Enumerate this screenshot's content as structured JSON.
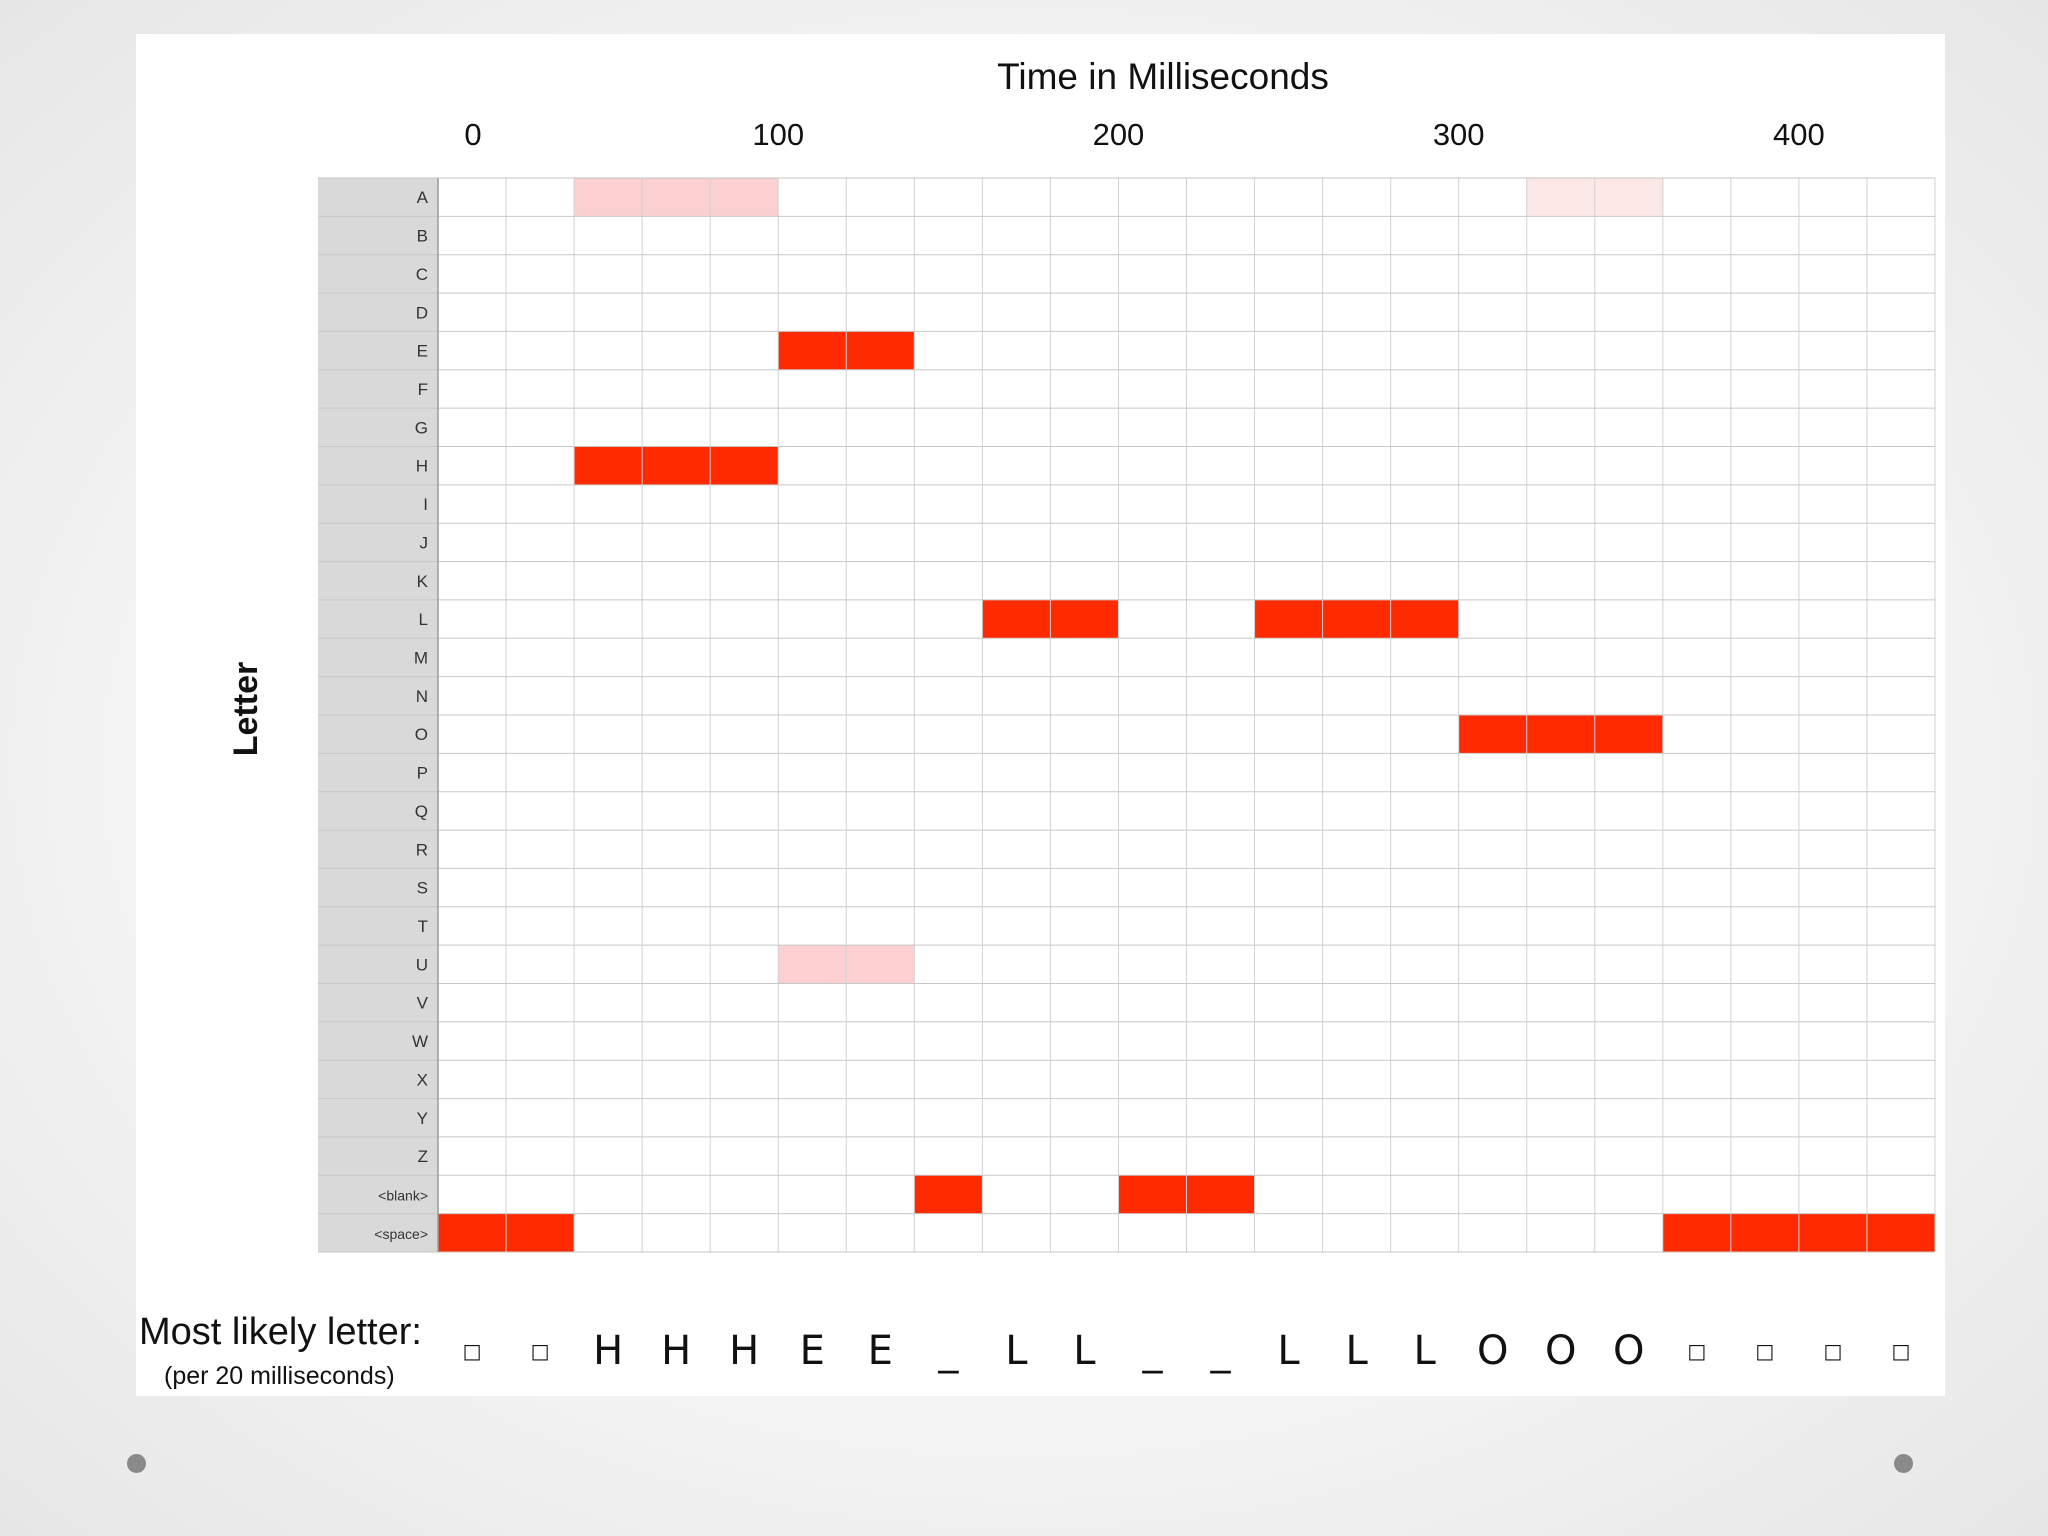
{
  "chart_data": {
    "type": "heatmap",
    "title": "Time in Milliseconds",
    "xlabel": "Time in Milliseconds",
    "ylabel": "Letter",
    "x_ticks": [
      "0",
      "100",
      "200",
      "300",
      "400"
    ],
    "x_tick_values": [
      0,
      100,
      200,
      300,
      400
    ],
    "frame_ms": 20,
    "n_frames": 22,
    "rows": [
      "A",
      "B",
      "C",
      "D",
      "E",
      "F",
      "G",
      "H",
      "I",
      "J",
      "K",
      "L",
      "M",
      "N",
      "O",
      "P",
      "Q",
      "R",
      "S",
      "T",
      "U",
      "V",
      "W",
      "X",
      "Y",
      "Z",
      "<blank>",
      "<space>"
    ],
    "colors": {
      "strong": "#ff2a00",
      "weak": "#fcd0d0",
      "faint": "#fde8e8",
      "grid": "#d2d2d2",
      "row_label_bg": "#d9d9d9"
    },
    "cells": [
      {
        "row": "<space>",
        "frames": [
          0,
          1
        ],
        "level": "strong"
      },
      {
        "row": "H",
        "frames": [
          2,
          3,
          4
        ],
        "level": "strong"
      },
      {
        "row": "A",
        "frames": [
          2,
          3,
          4
        ],
        "level": "weak"
      },
      {
        "row": "E",
        "frames": [
          5,
          6
        ],
        "level": "strong"
      },
      {
        "row": "U",
        "frames": [
          5,
          6
        ],
        "level": "weak"
      },
      {
        "row": "<blank>",
        "frames": [
          7
        ],
        "level": "strong"
      },
      {
        "row": "L",
        "frames": [
          8,
          9
        ],
        "level": "strong"
      },
      {
        "row": "<blank>",
        "frames": [
          10,
          11
        ],
        "level": "strong"
      },
      {
        "row": "L",
        "frames": [
          12,
          13,
          14
        ],
        "level": "strong"
      },
      {
        "row": "O",
        "frames": [
          15,
          16,
          17
        ],
        "level": "strong"
      },
      {
        "row": "A",
        "frames": [
          16,
          17
        ],
        "level": "faint"
      },
      {
        "row": "<space>",
        "frames": [
          18,
          19,
          20,
          21
        ],
        "level": "strong"
      }
    ]
  },
  "most_likely": {
    "label": "Most likely letter:",
    "sublabel": "(per 20 milliseconds)",
    "sequence": [
      "□",
      "□",
      "H",
      "H",
      "H",
      "E",
      "E",
      "_",
      "L",
      "L",
      "_",
      "_",
      "L",
      "L",
      "L",
      "O",
      "O",
      "O",
      "□",
      "□",
      "□",
      "□"
    ]
  }
}
